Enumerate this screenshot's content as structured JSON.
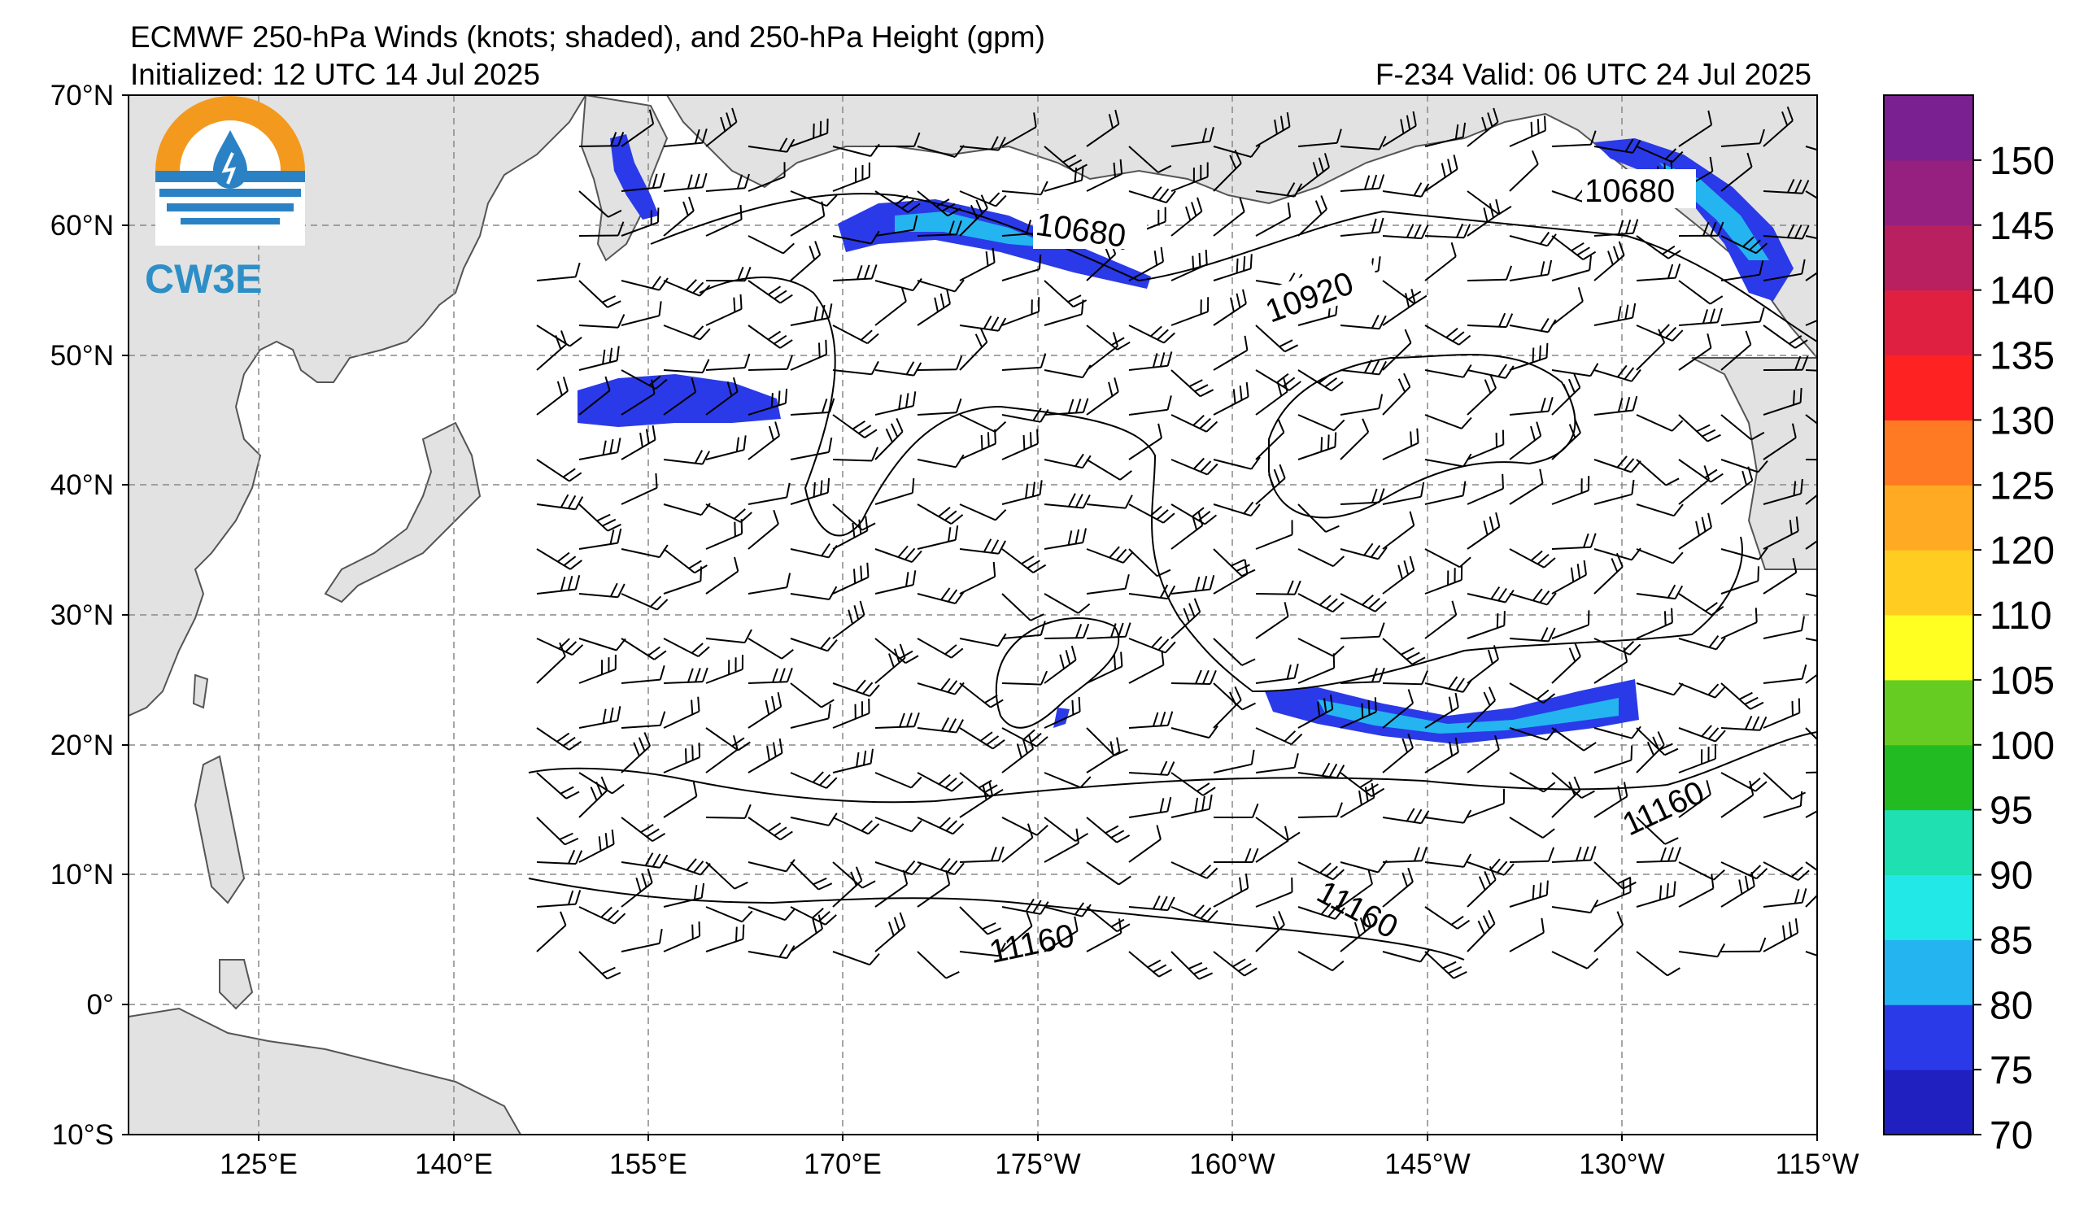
{
  "title": {
    "line1": "ECMWF 250-hPa Winds (knots; shaded), and 250-hPa Height (gpm)",
    "line2": "Initialized: 12 UTC 14 Jul 2025",
    "right": "F-234  Valid: 06 UTC 24 Jul 2025"
  },
  "logo": {
    "text": "CW3E"
  },
  "axes": {
    "lat_labels": [
      "70°N",
      "60°N",
      "50°N",
      "40°N",
      "30°N",
      "20°N",
      "10°N",
      "0°",
      "10°S"
    ],
    "lon_labels": [
      "125°E",
      "140°E",
      "155°E",
      "170°E",
      "175°W",
      "160°W",
      "145°W",
      "130°W",
      "115°W"
    ]
  },
  "contour_labels": [
    "10680",
    "10680",
    "10920",
    "11160",
    "11160",
    "11160"
  ],
  "colorbar": {
    "labels": [
      "70",
      "75",
      "80",
      "85",
      "90",
      "95",
      "100",
      "105",
      "110",
      "120",
      "125",
      "130",
      "135",
      "140",
      "145",
      "150"
    ],
    "colors": [
      "#2020c0",
      "#2a3ae8",
      "#24b4f0",
      "#22e8e8",
      "#1ee0b0",
      "#22bb22",
      "#66cc22",
      "#ffff22",
      "#ffcc22",
      "#ffaa22",
      "#ff7a22",
      "#ff2222",
      "#e02040",
      "#b82060",
      "#962080",
      "#7a2090"
    ],
    "units": ""
  },
  "map": {
    "land_color": "#e2e2e2",
    "coast_color": "#555555",
    "grid_color": "#888888",
    "jet_colors": {
      "core": "#24b4f0",
      "edge": "#2a3ae8",
      "inner": "#22e8e8"
    }
  }
}
